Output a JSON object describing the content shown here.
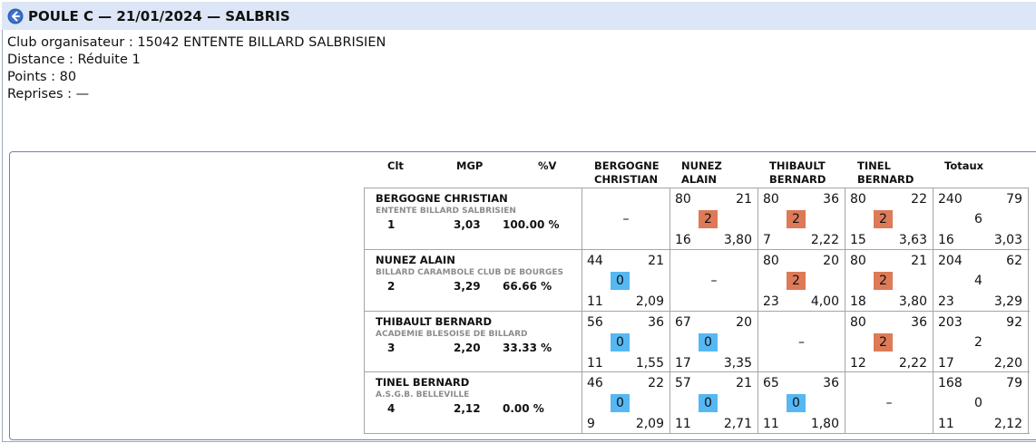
{
  "title": "POULE C — 21/01/2024 — SALBRIS",
  "info": {
    "club": "Club organisateur : 15042 ENTENTE BILLARD SALBRISIEN",
    "distance": "Distance : Réduite 1",
    "points": "Points : 80",
    "reprises": "Reprises : —"
  },
  "headers": {
    "clt": "Clt",
    "mgp": "MGP",
    "pv": "%V",
    "opponents": [
      [
        "BERGOGNE",
        "CHRISTIAN"
      ],
      [
        "NUNEZ",
        "ALAIN"
      ],
      [
        "THIBAULT",
        "BERNARD"
      ],
      [
        "TINEL",
        "BERNARD"
      ]
    ],
    "totaux": "Totaux"
  },
  "colors": {
    "win": "#dd7a57",
    "loss": "#56b8f2",
    "header_bg": "#dde6f6"
  },
  "players": [
    {
      "name": "BERGOGNE CHRISTIAN",
      "club": "ENTENTE BILLARD SALBRISIEN",
      "rank": "1",
      "mgp": "3,03",
      "pv": "100.00 %",
      "matches": [
        null,
        {
          "pts": "80",
          "serie": "21",
          "badge": "2",
          "rep": "16",
          "moy": "3,80"
        },
        {
          "pts": "80",
          "serie": "36",
          "badge": "2",
          "rep": "7",
          "moy": "2,22"
        },
        {
          "pts": "80",
          "serie": "22",
          "badge": "2",
          "rep": "15",
          "moy": "3,63"
        }
      ],
      "totals": {
        "pts": "240",
        "serie": "79",
        "mp": "6",
        "rep": "16",
        "moy": "3,03"
      }
    },
    {
      "name": "NUNEZ ALAIN",
      "club": "BILLARD CARAMBOLE CLUB DE BOURGES",
      "rank": "2",
      "mgp": "3,29",
      "pv": "66.66 %",
      "matches": [
        {
          "pts": "44",
          "serie": "21",
          "badge": "0",
          "rep": "11",
          "moy": "2,09"
        },
        null,
        {
          "pts": "80",
          "serie": "20",
          "badge": "2",
          "rep": "23",
          "moy": "4,00"
        },
        {
          "pts": "80",
          "serie": "21",
          "badge": "2",
          "rep": "18",
          "moy": "3,80"
        }
      ],
      "totals": {
        "pts": "204",
        "serie": "62",
        "mp": "4",
        "rep": "23",
        "moy": "3,29"
      }
    },
    {
      "name": "THIBAULT BERNARD",
      "club": "ACADEMIE BLESOISE DE BILLARD",
      "rank": "3",
      "mgp": "2,20",
      "pv": "33.33 %",
      "matches": [
        {
          "pts": "56",
          "serie": "36",
          "badge": "0",
          "rep": "11",
          "moy": "1,55"
        },
        {
          "pts": "67",
          "serie": "20",
          "badge": "0",
          "rep": "17",
          "moy": "3,35"
        },
        null,
        {
          "pts": "80",
          "serie": "36",
          "badge": "2",
          "rep": "12",
          "moy": "2,22"
        }
      ],
      "totals": {
        "pts": "203",
        "serie": "92",
        "mp": "2",
        "rep": "17",
        "moy": "2,20"
      }
    },
    {
      "name": "TINEL BERNARD",
      "club": "A.S.G.B. BELLEVILLE",
      "rank": "4",
      "mgp": "2,12",
      "pv": "0.00 %",
      "matches": [
        {
          "pts": "46",
          "serie": "22",
          "badge": "0",
          "rep": "9",
          "moy": "2,09"
        },
        {
          "pts": "57",
          "serie": "21",
          "badge": "0",
          "rep": "11",
          "moy": "2,71"
        },
        {
          "pts": "65",
          "serie": "36",
          "badge": "0",
          "rep": "11",
          "moy": "1,80"
        },
        null
      ],
      "totals": {
        "pts": "168",
        "serie": "79",
        "mp": "0",
        "rep": "11",
        "moy": "2,12"
      }
    }
  ],
  "dash": "–"
}
